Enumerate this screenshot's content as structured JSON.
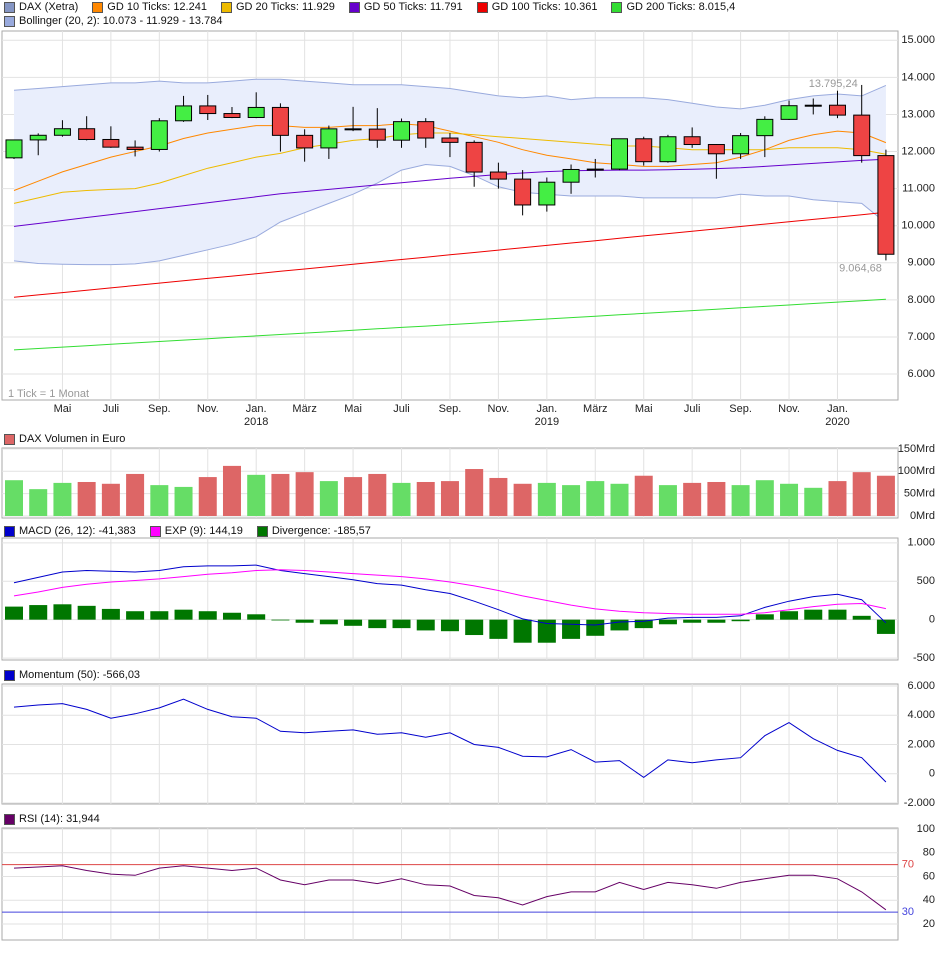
{
  "chart_data": [
    {
      "type": "candlestick",
      "categories": [
        null,
        null,
        "Mai",
        null,
        "Juli",
        null,
        "Sep.",
        null,
        "Nov.",
        null,
        "Jan.",
        null,
        "März",
        null,
        "Mai",
        null,
        "Juli",
        null,
        "Sep.",
        null,
        "Nov.",
        null,
        "Jan.",
        null,
        "März",
        null,
        "Mai",
        null,
        "Juli",
        null,
        "Sep.",
        null,
        "Nov.",
        null,
        "Jan.",
        null,
        null
      ],
      "year_categories": [
        null,
        null,
        null,
        null,
        null,
        null,
        null,
        null,
        null,
        null,
        "2018",
        null,
        null,
        null,
        null,
        null,
        null,
        null,
        null,
        null,
        null,
        null,
        "2019",
        null,
        null,
        null,
        null,
        null,
        null,
        null,
        null,
        null,
        null,
        null,
        "2020",
        null,
        null
      ],
      "candles": {
        "name": "DAX (Xetra)",
        "color": "#8596c4",
        "up_color": "#44ee44",
        "down_color": "#ee4444",
        "open": [
          11830,
          12313,
          12438,
          12615,
          12325,
          12118,
          12056,
          12829,
          13230,
          13024,
          12918,
          13189,
          12436,
          12097,
          12612,
          12605,
          12306,
          12806,
          12364,
          12247,
          11447,
          11257,
          10559,
          11173,
          11516,
          11526,
          12344,
          11726,
          12399,
          12189,
          11939,
          12428,
          12867,
          13236,
          13249,
          12982,
          11890
        ],
        "high": [
          12320,
          12490,
          12845,
          12952,
          12680,
          12300,
          12900,
          13500,
          13526,
          13200,
          13597,
          13300,
          12600,
          12700,
          13205,
          13170,
          12890,
          12900,
          12500,
          12300,
          11700,
          11500,
          11300,
          11650,
          11800,
          12350,
          12400,
          12450,
          12650,
          12200,
          12500,
          12950,
          13375,
          13430,
          13640,
          13795.24,
          12050
        ],
        "low": [
          11800,
          11900,
          12400,
          12300,
          12100,
          11868,
          12000,
          12800,
          12850,
          12900,
          12900,
          12000,
          11727,
          11800,
          12550,
          12100,
          12100,
          12100,
          11850,
          11050,
          11000,
          10279,
          10380,
          10860,
          11300,
          11500,
          11620,
          11700,
          12100,
          11266,
          11800,
          11850,
          12850,
          13000,
          12900,
          11700,
          9064.68
        ],
        "close": [
          12313,
          12438,
          12615,
          12325,
          12118,
          12056,
          12829,
          13230,
          13024,
          12918,
          13189,
          12436,
          12097,
          12612,
          12605,
          12306,
          12806,
          12364,
          12247,
          11447,
          11257,
          10559,
          11173,
          11516,
          11526,
          12344,
          11726,
          12399,
          12189,
          11939,
          12428,
          12867,
          13236,
          13249,
          12982,
          11890,
          9230
        ]
      },
      "lines": [
        {
          "name": "GD 10 Ticks: 12.241",
          "color": "#ff8800",
          "values": [
            10950,
            11200,
            11450,
            11650,
            11850,
            12000,
            12150,
            12350,
            12500,
            12600,
            12700,
            12700,
            12650,
            12650,
            12700,
            12700,
            12750,
            12700,
            12550,
            12400,
            12250,
            12050,
            11900,
            11800,
            11700,
            11650,
            11600,
            11600,
            11650,
            11700,
            11850,
            12050,
            12300,
            12450,
            12550,
            12500,
            12241
          ]
        },
        {
          "name": "GD 20 Ticks: 11.929",
          "color": "#eebb00",
          "values": [
            10600,
            10750,
            10900,
            10950,
            10980,
            11000,
            11150,
            11350,
            11550,
            11700,
            11850,
            11950,
            12100,
            12200,
            12300,
            12350,
            12450,
            12500,
            12500,
            12450,
            12400,
            12350,
            12300,
            12250,
            12200,
            12150,
            12150,
            12100,
            12050,
            12050,
            12050,
            12050,
            12100,
            12100,
            12100,
            12050,
            11929
          ]
        },
        {
          "name": "GD 50 Ticks: 11.791",
          "color": "#6600cc",
          "values": [
            9980,
            10060,
            10140,
            10220,
            10300,
            10380,
            10460,
            10540,
            10620,
            10700,
            10780,
            10860,
            10920,
            10980,
            11040,
            11100,
            11160,
            11220,
            11280,
            11330,
            11380,
            11420,
            11460,
            11480,
            11490,
            11500,
            11500,
            11510,
            11520,
            11540,
            11560,
            11600,
            11640,
            11680,
            11720,
            11760,
            11791
          ]
        },
        {
          "name": "GD 100 Ticks: 10.361",
          "color": "#ee0000",
          "values": [
            8070,
            8134,
            8197,
            8261,
            8324,
            8388,
            8452,
            8515,
            8579,
            8642,
            8706,
            8770,
            8833,
            8897,
            8960,
            9024,
            9088,
            9151,
            9215,
            9278,
            9342,
            9406,
            9469,
            9533,
            9596,
            9660,
            9724,
            9787,
            9851,
            9914,
            9978,
            10042,
            10105,
            10169,
            10232,
            10296,
            10361
          ]
        },
        {
          "name": "GD 200 Ticks: 8.015,4",
          "color": "#33dd33",
          "values": [
            6650,
            6688,
            6726,
            6764,
            6802,
            6840,
            6878,
            6915,
            6953,
            6991,
            7029,
            7067,
            7105,
            7143,
            7181,
            7219,
            7257,
            7294,
            7332,
            7370,
            7408,
            7446,
            7484,
            7522,
            7560,
            7598,
            7636,
            7673,
            7711,
            7749,
            7787,
            7825,
            7863,
            7901,
            7939,
            7977,
            8015
          ]
        }
      ],
      "band": {
        "name": "Bollinger (20, 2): 10.073 - 11.929 - 13.784",
        "color": "#99aadd",
        "fill": "#e9eefc",
        "upper": [
          13650,
          13700,
          13750,
          13800,
          13850,
          13850,
          13900,
          13850,
          13850,
          13900,
          13950,
          13950,
          13900,
          13850,
          13800,
          13800,
          13800,
          13750,
          13700,
          13600,
          13500,
          13450,
          13500,
          13400,
          13450,
          13450,
          13450,
          13400,
          13300,
          13200,
          13150,
          13250,
          13400,
          13500,
          13550,
          13500,
          13784
        ],
        "lower": [
          9050,
          8980,
          8960,
          8950,
          8950,
          8970,
          9050,
          9200,
          9350,
          9500,
          9700,
          10100,
          10350,
          10600,
          10850,
          11150,
          11500,
          11650,
          11600,
          11350,
          11050,
          10900,
          10850,
          10800,
          10800,
          10800,
          10750,
          10750,
          10750,
          10750,
          10850,
          10800,
          10800,
          10700,
          10650,
          10600,
          10073
        ]
      },
      "max_label": "13.795,24",
      "min_label": "9.064,68",
      "note": "1 Tick = 1 Monat",
      "ylim": [
        5300,
        15250
      ],
      "yticks": [
        {
          "value": 6000,
          "label": "6.000"
        },
        {
          "value": 7000,
          "label": "7.000"
        },
        {
          "value": 8000,
          "label": "8.000"
        },
        {
          "value": 9000,
          "label": "9.000"
        },
        {
          "value": 10000,
          "label": "10.000"
        },
        {
          "value": 11000,
          "label": "11.000"
        },
        {
          "value": 12000,
          "label": "12.000"
        },
        {
          "value": 13000,
          "label": "13.000"
        },
        {
          "value": 14000,
          "label": "14.000"
        },
        {
          "value": 15000,
          "label": "15.000"
        }
      ],
      "grid": true
    },
    {
      "type": "bar",
      "title": "DAX Volumen in Euro",
      "color": "#dd6666",
      "values": [
        80,
        60,
        74,
        76,
        72,
        94,
        69,
        65,
        87,
        112,
        92,
        94,
        98,
        78,
        87,
        94,
        74,
        76,
        78,
        105,
        85,
        72,
        74,
        69,
        78,
        72,
        90,
        69,
        74,
        76,
        69,
        80,
        72,
        63,
        78,
        98,
        90
      ],
      "colors": [
        "#66dd66",
        "#66dd66",
        "#66dd66",
        "#dd6666",
        "#dd6666",
        "#dd6666",
        "#66dd66",
        "#66dd66",
        "#dd6666",
        "#dd6666",
        "#66dd66",
        "#dd6666",
        "#dd6666",
        "#66dd66",
        "#dd6666",
        "#dd6666",
        "#66dd66",
        "#dd6666",
        "#dd6666",
        "#dd6666",
        "#dd6666",
        "#dd6666",
        "#66dd66",
        "#66dd66",
        "#66dd66",
        "#66dd66",
        "#dd6666",
        "#66dd66",
        "#dd6666",
        "#dd6666",
        "#66dd66",
        "#66dd66",
        "#66dd66",
        "#66dd66",
        "#dd6666",
        "#dd6666",
        "#dd6666"
      ],
      "ylim": [
        -4.5,
        152
      ],
      "yticks": [
        {
          "value": 0,
          "label": "0Mrd"
        },
        {
          "value": 50,
          "label": "50Mrd"
        },
        {
          "value": 100,
          "label": "100Mrd"
        },
        {
          "value": 150,
          "label": "150Mrd"
        }
      ],
      "grid": true
    },
    {
      "type": "combo",
      "series": [
        {
          "name": "MACD (26, 12): -41,383",
          "color": "#0000cc",
          "kind": "line",
          "values": [
            480,
            550,
            620,
            640,
            630,
            620,
            640,
            690,
            700,
            700,
            710,
            640,
            600,
            560,
            520,
            470,
            450,
            390,
            340,
            240,
            130,
            10,
            -50,
            -60,
            -70,
            -30,
            -20,
            20,
            30,
            30,
            50,
            160,
            240,
            300,
            330,
            260,
            -41.383
          ]
        },
        {
          "name": "EXP (9): 144,19",
          "color": "#ff00ff",
          "kind": "line",
          "values": [
            310,
            360,
            420,
            460,
            490,
            510,
            530,
            560,
            590,
            610,
            640,
            650,
            640,
            620,
            600,
            580,
            560,
            530,
            490,
            440,
            380,
            310,
            250,
            190,
            140,
            110,
            90,
            80,
            70,
            70,
            70,
            90,
            130,
            170,
            200,
            210,
            144.19
          ]
        },
        {
          "name": "Divergence: -185,57",
          "color": "#007700",
          "kind": "bar",
          "values": [
            170,
            190,
            200,
            180,
            140,
            110,
            110,
            130,
            110,
            90,
            70,
            -10,
            -40,
            -60,
            -80,
            -110,
            -110,
            -140,
            -150,
            -200,
            -250,
            -300,
            -300,
            -250,
            -210,
            -140,
            -110,
            -60,
            -40,
            -40,
            -20,
            70,
            110,
            130,
            130,
            50,
            -185.57
          ]
        }
      ],
      "ylim": [
        -525,
        1063
      ],
      "yticks": [
        -500,
        0,
        500,
        {
          "value": 1000,
          "label": "1.000"
        }
      ],
      "grid": true
    },
    {
      "type": "line",
      "series": [
        {
          "name": "Momentum (50): -566,03",
          "color": "#0000cc",
          "values": [
            4560,
            4700,
            4800,
            4400,
            3800,
            4100,
            4500,
            5100,
            4400,
            3900,
            3800,
            2900,
            2800,
            2900,
            3000,
            2700,
            2800,
            2500,
            2800,
            2000,
            1800,
            1200,
            1150,
            1650,
            800,
            900,
            -250,
            950,
            750,
            950,
            1100,
            2600,
            3500,
            2400,
            1600,
            1100,
            -566.03
          ]
        }
      ],
      "ylim": [
        -2068,
        6137
      ],
      "yticks": [
        {
          "value": -2000,
          "label": "-2.000"
        },
        0,
        {
          "value": 2000,
          "label": "2.000"
        },
        {
          "value": 4000,
          "label": "4.000"
        },
        {
          "value": 6000,
          "label": "6.000"
        }
      ],
      "grid": true
    },
    {
      "type": "line",
      "series": [
        {
          "name": "RSI (14): 31,944",
          "color": "#660066",
          "values": [
            67,
            68,
            69,
            65,
            62,
            61,
            67,
            69,
            67,
            65,
            67,
            57,
            53,
            57,
            57,
            54,
            58,
            53,
            52,
            44,
            42,
            36,
            43,
            47,
            47,
            55,
            49,
            55,
            53,
            50,
            55,
            58,
            61,
            61,
            58,
            47,
            31.944
          ]
        }
      ],
      "hlines": [
        {
          "value": 70,
          "label": "70",
          "color": "#dd4444"
        },
        {
          "value": 30,
          "label": "30",
          "color": "#4444dd"
        }
      ],
      "ylim": [
        6.5,
        100.8
      ],
      "yticks": [
        20,
        40,
        60,
        80,
        100
      ],
      "grid": true
    }
  ]
}
